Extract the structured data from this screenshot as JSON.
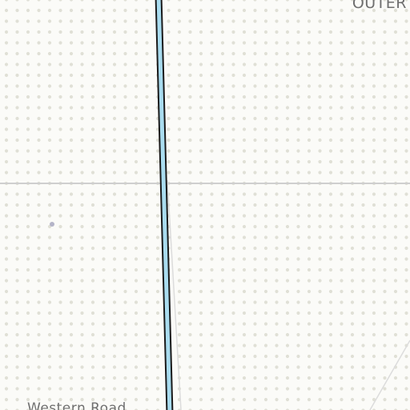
{
  "map": {
    "labels": {
      "outer": "OUTER",
      "road": "Western Road"
    },
    "colors": {
      "land": "#fbfbf8",
      "dot": "#e0e0d6",
      "grid_line": "#cfcfcf",
      "waterway_fill": "#a9dcef",
      "waterway_casing": "#1a1a1a",
      "minor_road": "#dcdcdc",
      "poi_dot": "#b4b4c8"
    },
    "features": [
      "waterway",
      "grid-line",
      "minor-road",
      "poi-marker"
    ]
  }
}
